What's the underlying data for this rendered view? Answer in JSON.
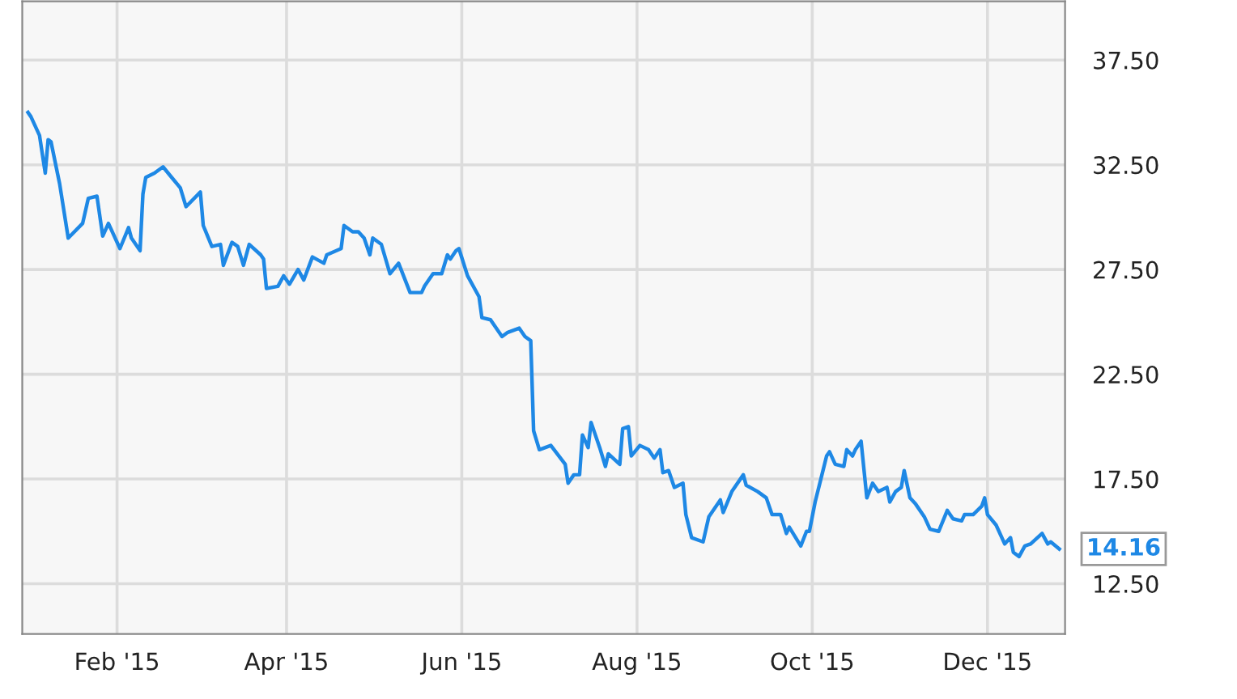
{
  "chart_data": {
    "type": "line",
    "x": [
      "2015-01-01",
      "2015-01-02",
      "2015-01-05",
      "2015-01-07",
      "2015-01-08",
      "2015-01-09",
      "2015-01-12",
      "2015-01-15",
      "2015-01-20",
      "2015-01-22",
      "2015-01-25",
      "2015-01-27",
      "2015-01-29",
      "2015-02-02",
      "2015-02-05",
      "2015-02-06",
      "2015-02-09",
      "2015-02-10",
      "2015-02-11",
      "2015-02-14",
      "2015-02-17",
      "2015-02-20",
      "2015-02-23",
      "2015-02-25",
      "2015-03-02",
      "2015-03-03",
      "2015-03-06",
      "2015-03-09",
      "2015-03-10",
      "2015-03-13",
      "2015-03-15",
      "2015-03-17",
      "2015-03-19",
      "2015-03-23",
      "2015-03-24",
      "2015-03-25",
      "2015-03-29",
      "2015-03-31",
      "2015-04-02",
      "2015-04-05",
      "2015-04-07",
      "2015-04-10",
      "2015-04-14",
      "2015-04-15",
      "2015-04-20",
      "2015-04-21",
      "2015-04-24",
      "2015-04-26",
      "2015-04-28",
      "2015-04-30",
      "2015-05-01",
      "2015-05-04",
      "2015-05-07",
      "2015-05-10",
      "2015-05-14",
      "2015-05-18",
      "2015-05-19",
      "2015-05-22",
      "2015-05-25",
      "2015-05-27",
      "2015-05-28",
      "2015-05-30",
      "2015-05-31",
      "2015-06-03",
      "2015-06-07",
      "2015-06-08",
      "2015-06-11",
      "2015-06-15",
      "2015-06-17",
      "2015-06-21",
      "2015-06-23",
      "2015-06-25",
      "2015-06-26",
      "2015-06-28",
      "2015-07-02",
      "2015-07-07",
      "2015-07-08",
      "2015-07-10",
      "2015-07-12",
      "2015-07-13",
      "2015-07-15",
      "2015-07-16",
      "2015-07-19",
      "2015-07-21",
      "2015-07-22",
      "2015-07-26",
      "2015-07-27",
      "2015-07-29",
      "2015-07-30",
      "2015-08-02",
      "2015-08-05",
      "2015-08-07",
      "2015-08-09",
      "2015-08-10",
      "2015-08-12",
      "2015-08-14",
      "2015-08-17",
      "2015-08-18",
      "2015-08-20",
      "2015-08-24",
      "2015-08-26",
      "2015-08-30",
      "2015-08-31",
      "2015-09-03",
      "2015-09-07",
      "2015-09-08",
      "2015-09-12",
      "2015-09-15",
      "2015-09-17",
      "2015-09-20",
      "2015-09-22",
      "2015-09-23",
      "2015-09-27",
      "2015-09-29",
      "2015-09-30",
      "2015-10-02",
      "2015-10-06",
      "2015-10-07",
      "2015-10-09",
      "2015-10-12",
      "2015-10-13",
      "2015-10-15",
      "2015-10-16",
      "2015-10-18",
      "2015-10-20",
      "2015-10-22",
      "2015-10-24",
      "2015-10-27",
      "2015-10-28",
      "2015-10-30",
      "2015-11-01",
      "2015-11-02",
      "2015-11-04",
      "2015-11-06",
      "2015-11-09",
      "2015-11-11",
      "2015-11-14",
      "2015-11-17",
      "2015-11-19",
      "2015-11-22",
      "2015-11-23",
      "2015-11-26",
      "2015-11-29",
      "2015-11-30",
      "2015-12-01",
      "2015-12-04",
      "2015-12-07",
      "2015-12-09",
      "2015-12-10",
      "2015-12-12",
      "2015-12-14",
      "2015-12-16",
      "2015-12-20",
      "2015-12-22",
      "2015-12-23",
      "2015-12-26"
    ],
    "series": [
      {
        "color": "#1e88e5",
        "values": [
          35.0,
          34.8,
          33.9,
          32.1,
          33.7,
          33.6,
          31.6,
          29.0,
          29.7,
          30.9,
          31.0,
          29.1,
          29.7,
          28.5,
          29.5,
          29.0,
          28.4,
          31.1,
          31.9,
          32.1,
          32.4,
          31.9,
          31.4,
          30.5,
          31.2,
          29.6,
          28.6,
          28.7,
          27.7,
          28.8,
          28.6,
          27.7,
          28.7,
          28.2,
          28.0,
          26.6,
          26.7,
          27.2,
          26.8,
          27.5,
          27.0,
          28.1,
          27.8,
          28.2,
          28.5,
          29.6,
          29.3,
          29.3,
          29.0,
          28.2,
          29.0,
          28.7,
          27.3,
          27.8,
          26.4,
          26.4,
          26.7,
          27.3,
          27.3,
          28.2,
          28.0,
          28.4,
          28.5,
          27.2,
          26.2,
          25.2,
          25.1,
          24.3,
          24.5,
          24.7,
          24.3,
          24.1,
          19.8,
          18.9,
          19.1,
          18.2,
          17.3,
          17.7,
          17.7,
          19.6,
          19.0,
          20.2,
          19.0,
          18.1,
          18.7,
          18.2,
          19.9,
          20.0,
          18.6,
          19.1,
          18.9,
          18.5,
          18.9,
          17.8,
          17.9,
          17.1,
          17.3,
          15.8,
          14.7,
          14.5,
          15.7,
          16.5,
          15.9,
          16.9,
          17.7,
          17.2,
          16.9,
          16.6,
          15.8,
          15.8,
          14.9,
          15.2,
          14.3,
          15.0,
          15.0,
          16.4,
          18.6,
          18.8,
          18.2,
          18.1,
          18.9,
          18.6,
          18.9,
          19.3,
          16.6,
          17.3,
          16.9,
          17.1,
          16.4,
          16.9,
          17.1,
          17.9,
          16.6,
          16.3,
          15.7,
          15.1,
          15.0,
          16.0,
          15.6,
          15.5,
          15.8,
          15.8,
          16.2,
          16.6,
          15.8,
          15.3,
          14.4,
          14.7,
          14.0,
          13.8,
          14.3,
          14.4,
          14.9,
          14.4,
          14.5,
          14.16
        ]
      }
    ],
    "xlim": [
      "2014-12-30",
      "2015-12-28"
    ],
    "ylim": [
      10.1,
      40.3
    ],
    "xticks": [
      {
        "value": "2015-02-01",
        "label": "Feb '15"
      },
      {
        "value": "2015-04-01",
        "label": "Apr '15"
      },
      {
        "value": "2015-06-01",
        "label": "Jun '15"
      },
      {
        "value": "2015-08-01",
        "label": "Aug '15"
      },
      {
        "value": "2015-10-01",
        "label": "Oct '15"
      },
      {
        "value": "2015-12-01",
        "label": "Dec '15"
      }
    ],
    "yticks": [
      {
        "value": 12.5,
        "label": "12.50"
      },
      {
        "value": 17.5,
        "label": "17.50"
      },
      {
        "value": 22.5,
        "label": "22.50"
      },
      {
        "value": 27.5,
        "label": "27.50"
      },
      {
        "value": 32.5,
        "label": "32.50"
      },
      {
        "value": 37.5,
        "label": "37.50"
      }
    ],
    "annotations": [
      {
        "text": "14.16",
        "x": "2015-12-26",
        "y": 14.16
      }
    ],
    "grid": true,
    "legend": false,
    "marker": "none",
    "line_style": "solid"
  }
}
